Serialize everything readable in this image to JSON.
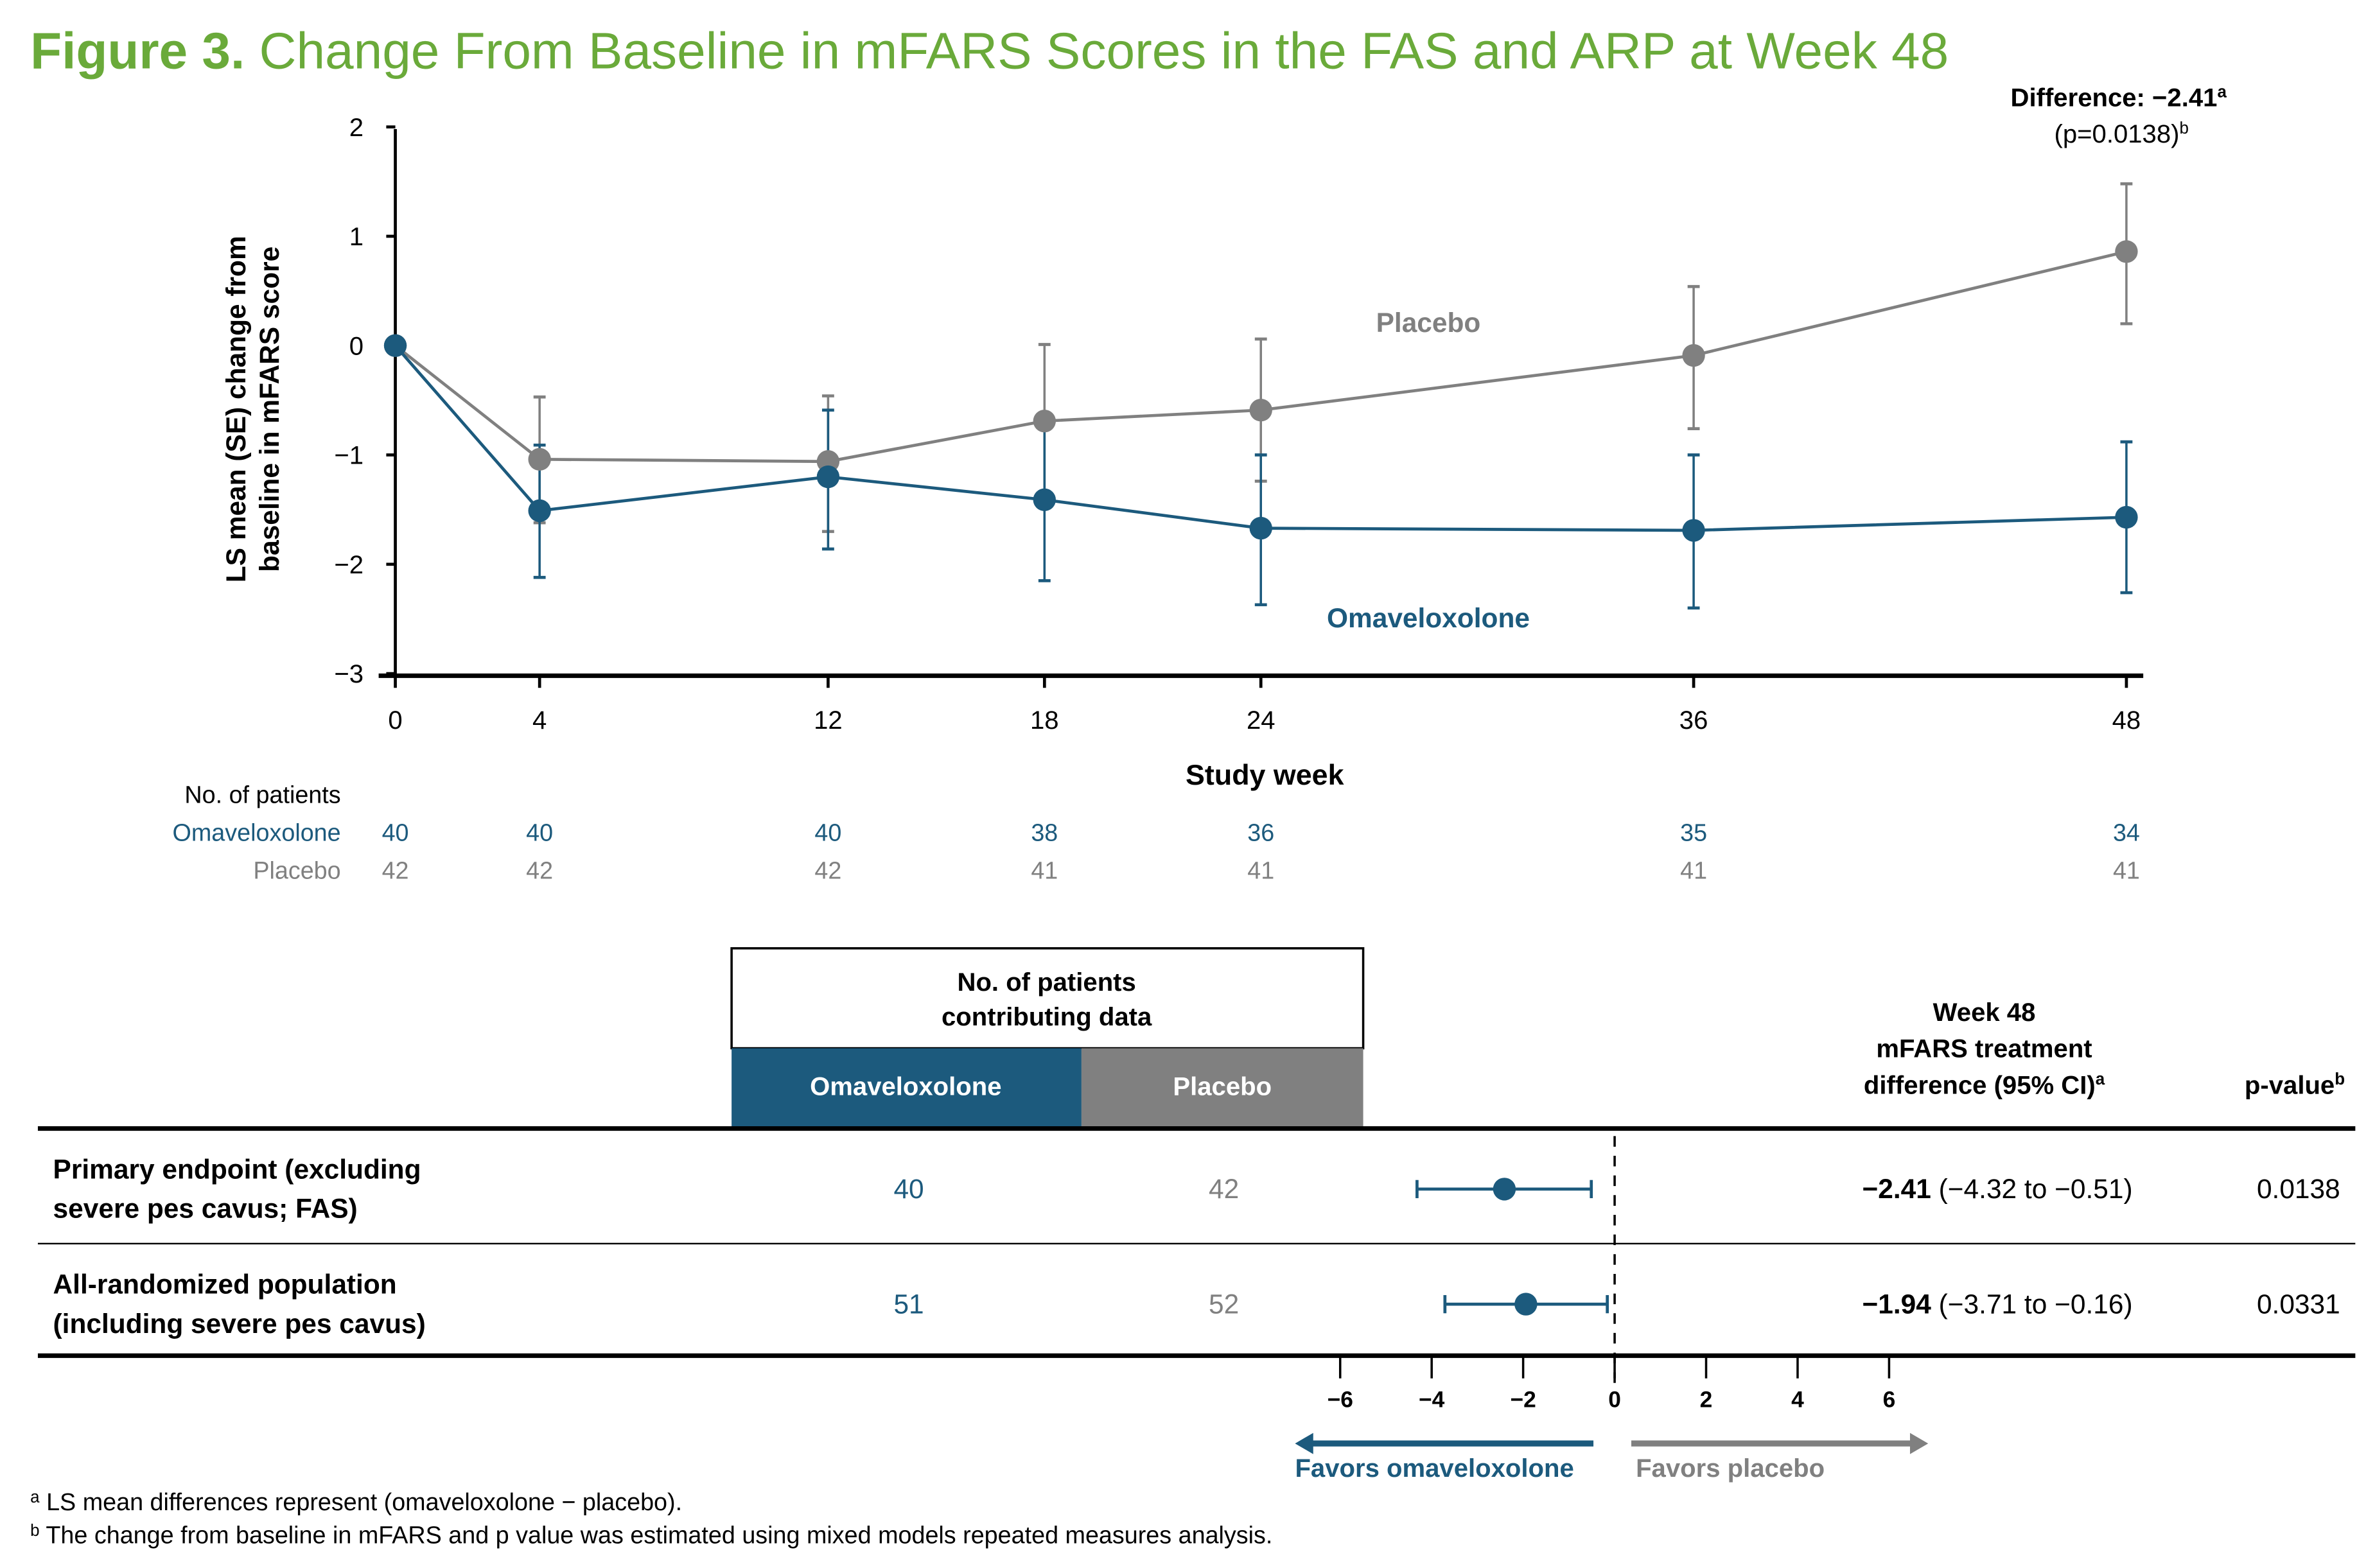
{
  "title": {
    "prefix": "Figure 3.",
    "text": " Change From Baseline in mFARS Scores in the FAS and ARP at Week 48"
  },
  "colors": {
    "title": "#6aaa3a",
    "omav": "#1c5a7d",
    "placebo": "#808080",
    "axis": "#000000"
  },
  "chart_data": {
    "type": "line",
    "xlabel": "Study week",
    "ylabel": [
      "LS mean (SE) change from",
      "baseline in mFARS score"
    ],
    "x": [
      0,
      4,
      12,
      18,
      24,
      36,
      48
    ],
    "x_ticks": [
      "0",
      "4",
      "12",
      "18",
      "24",
      "36",
      "48"
    ],
    "ylim": [
      -3,
      2
    ],
    "y_ticks": [
      "2",
      "1",
      "0",
      "−1",
      "−2",
      "−3"
    ],
    "y_tick_values": [
      2,
      1,
      0,
      -1,
      -2,
      -3
    ],
    "series": [
      {
        "name": "Placebo",
        "color": "#808080",
        "values": [
          0,
          -1.04,
          -1.06,
          -0.69,
          -0.59,
          -0.09,
          0.86
        ],
        "upper": [
          null,
          -0.47,
          -0.46,
          0.01,
          0.06,
          0.54,
          1.48
        ],
        "lower": [
          null,
          -1.62,
          -1.7,
          -1.38,
          -1.24,
          -0.76,
          0.2
        ]
      },
      {
        "name": "Omaveloxolone",
        "color": "#1c5a7d",
        "values": [
          0,
          -1.51,
          -1.2,
          -1.41,
          -1.67,
          -1.69,
          -1.57
        ],
        "upper": [
          null,
          -0.91,
          -0.59,
          -0.68,
          -1.0,
          -1.0,
          -0.88
        ],
        "lower": [
          null,
          -2.12,
          -1.86,
          -2.15,
          -2.37,
          -2.4,
          -2.26
        ]
      }
    ],
    "annotation": {
      "line1": "Difference: −2.41",
      "line1_sup": "a",
      "line2": "(p=0.0138)",
      "line2_sup": "b"
    }
  },
  "patients": {
    "header": "No. of patients",
    "rows": [
      {
        "label": "Omaveloxolone",
        "values": [
          "40",
          "40",
          "40",
          "38",
          "36",
          "35",
          "34"
        ]
      },
      {
        "label": "Placebo",
        "values": [
          "42",
          "42",
          "42",
          "41",
          "41",
          "41",
          "41"
        ]
      }
    ]
  },
  "forest": {
    "box_header": [
      "No. of patients",
      "contributing data"
    ],
    "col_omav": "Omaveloxolone",
    "col_placebo": "Placebo",
    "diff_header": [
      "Week 48",
      "mFARS treatment",
      "difference (95% CI)"
    ],
    "diff_header_sup": "a",
    "p_header": "p-value",
    "p_header_sup": "b",
    "rows": [
      {
        "label": [
          "Primary endpoint (excluding",
          "severe pes cavus; FAS)"
        ],
        "n_omav": "40",
        "n_placebo": "42",
        "estimate": -2.41,
        "ci": [
          -4.32,
          -0.51
        ],
        "est_text": "−2.41",
        "ci_text": " (−4.32 to −0.51)",
        "p": "0.0138"
      },
      {
        "label": [
          "All-randomized population",
          "(including severe pes cavus)"
        ],
        "n_omav": "51",
        "n_placebo": "52",
        "estimate": -1.94,
        "ci": [
          -3.71,
          -0.16
        ],
        "est_text": "−1.94",
        "ci_text": " (−3.71 to −0.16)",
        "p": "0.0331"
      }
    ],
    "axis_ticks": [
      "−6",
      "−4",
      "−2",
      "0",
      "2",
      "4",
      "6"
    ],
    "axis_values": [
      -6,
      -4,
      -2,
      0,
      2,
      4,
      6
    ],
    "favors_left": "Favors omaveloxolone",
    "favors_right": "Favors placebo"
  },
  "footnotes": [
    {
      "sup": "a",
      "text": " LS mean differences represent (omaveloxolone − placebo)."
    },
    {
      "sup": "b",
      "text": " The change from baseline in mFARS and p value was estimated using mixed models repeated measures analysis."
    }
  ]
}
